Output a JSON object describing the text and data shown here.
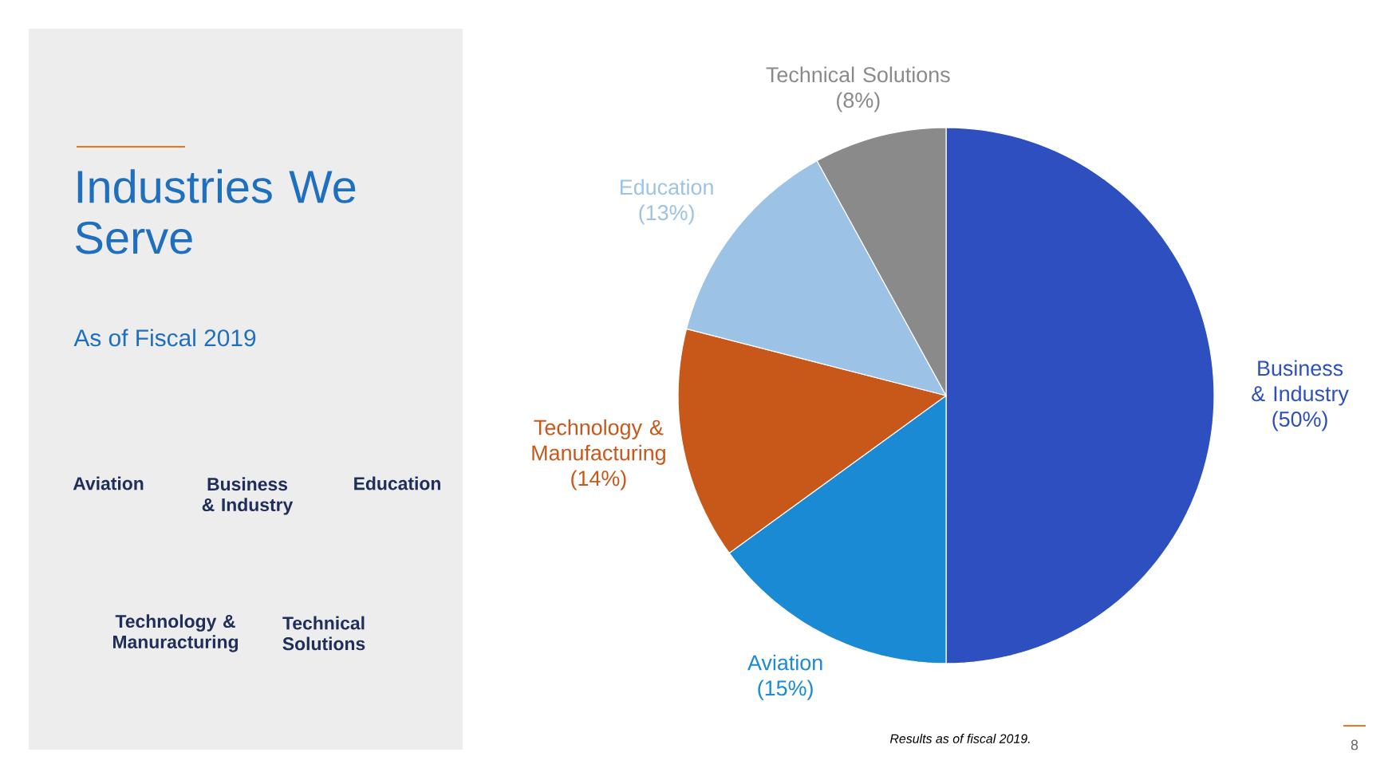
{
  "chart_data": {
    "type": "pie",
    "title": "Industries We Serve",
    "subtitle": "As of Fiscal 2019",
    "categories": [
      "Business & Industry",
      "Aviation",
      "Technology & Manufacturing",
      "Education",
      "Technical Solutions"
    ],
    "values": [
      50,
      15,
      14,
      13,
      8
    ],
    "colors": [
      "#2e4fbf",
      "#1a8ad4",
      "#c8581a",
      "#9cc3e6",
      "#8a8a8a"
    ],
    "value_labels": [
      "(50%)",
      "(15%)",
      "(14%)",
      "(13%)",
      "(8%)"
    ],
    "annotations": [
      "Aviation",
      "Business & Industry",
      "Education",
      "Technology & Manuracturing",
      "Technical Solutions",
      "Results as of fiscal 2019.",
      "8"
    ]
  }
}
